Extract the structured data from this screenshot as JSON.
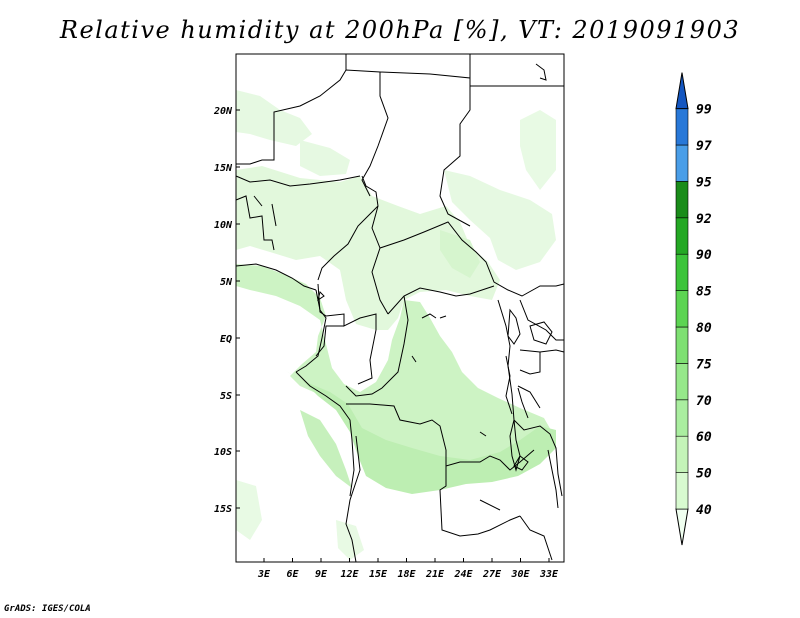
{
  "title": "Relative humidity at 200hPa [%], VT: 2019091903",
  "credit": "GrADS: IGES/COLA",
  "map": {
    "lon_range": [
      0,
      35
    ],
    "lat_range": [
      -20,
      25
    ],
    "lon_ticks": [
      "3E",
      "6E",
      "9E",
      "12E",
      "15E",
      "18E",
      "21E",
      "24E",
      "27E",
      "30E",
      "33E"
    ],
    "lat_ticks": [
      "20N",
      "15N",
      "10N",
      "5N",
      "EQ",
      "5S",
      "10S",
      "15S"
    ],
    "fill_colors": {
      "50": "#f0fff0",
      "60": "#d5f7d0",
      "70": "#c0f0b8"
    },
    "border_color": "#000000"
  },
  "colorbar": {
    "levels": [
      "40",
      "50",
      "60",
      "70",
      "75",
      "80",
      "85",
      "90",
      "92",
      "95",
      "97",
      "99"
    ],
    "colors": [
      "#f0fff0",
      "#d8fad0",
      "#c4f4b8",
      "#aaeea0",
      "#96e88a",
      "#7ee072",
      "#5cd452",
      "#3cc43a",
      "#24a824",
      "#1a8c1a",
      "#4a9ee8",
      "#2878d8",
      "#1456c0"
    ]
  }
}
